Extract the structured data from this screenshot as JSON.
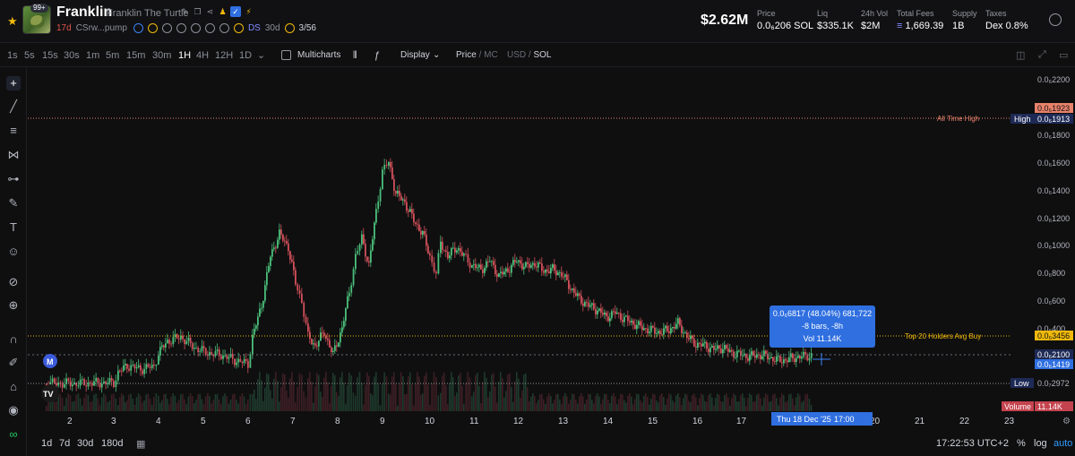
{
  "header": {
    "avatar_badge": "99+",
    "token_name": "Franklin",
    "token_full_name": "Franklin The Turtle",
    "age": "17d",
    "address": "CSrw...pump",
    "ds_label": "DS",
    "ds_period": "30d",
    "holders_ratio": "3/56",
    "market_cap": "$2.62M",
    "stats": [
      {
        "label": "Price",
        "value": "0.0₆206 SOL"
      },
      {
        "label": "Liq",
        "value": "$335.1K"
      },
      {
        "label": "24h Vol",
        "value": "$2M"
      },
      {
        "label": "Total Fees",
        "value": "1,669.39"
      },
      {
        "label": "Supply",
        "value": "1B"
      },
      {
        "label": "Taxes",
        "value": "Dex 0.8%"
      }
    ]
  },
  "toolbar": {
    "timeframes": [
      "1s",
      "5s",
      "15s",
      "30s",
      "1m",
      "5m",
      "15m",
      "30m",
      "1H",
      "4H",
      "12H",
      "1D"
    ],
    "active_timeframe": "1H",
    "multicharts_label": "Multicharts",
    "display_label": "Display",
    "price_label": "Price",
    "mc_label": "MC",
    "usd_label": "USD",
    "sol_label": "SOL",
    "sep": "/"
  },
  "chart_data": {
    "type": "candlestick",
    "x_ticks": [
      "2",
      "3",
      "4",
      "5",
      "6",
      "7",
      "8",
      "9",
      "10",
      "11",
      "12",
      "13",
      "14",
      "15",
      "16",
      "17",
      "20",
      "21",
      "22",
      "23"
    ],
    "y_ticks": [
      "0.0₆2200",
      "0.0₆1800",
      "0.0₆1600",
      "0.0₆1400",
      "0.0₆1200",
      "0.0₆1000",
      "0.0₆800",
      "0.0₆600",
      "0.0₆400"
    ],
    "price_labels": {
      "top": "0.0₆1923",
      "high_label": "High",
      "high_value": "0.0₆1913",
      "top20": "0.0₆3456",
      "current": "0.0₆2100",
      "current2": "0.0₆1419",
      "low_label": "Low",
      "low_value": "0.0₇2972",
      "volume_label": "Volume",
      "volume_value": "11.14K"
    },
    "annotations": {
      "ath": "All Time High",
      "top20": "Top 20 Holders Avg Buy"
    },
    "tooltip": {
      "line1": "0.0₆6817 (48.04%) 681,722",
      "line2": "-8 bars, -8h",
      "line3": "Vol 11.14K"
    },
    "crosshair_date": "Thu 18 Dec '25",
    "crosshair_time": "17:00",
    "marker_label": "M",
    "tv_label": "TV"
  },
  "bottom": {
    "ranges": [
      "1d",
      "7d",
      "30d",
      "180d"
    ],
    "clock": "17:22:53 UTC+2",
    "pct": "%",
    "log": "log",
    "auto": "auto"
  }
}
